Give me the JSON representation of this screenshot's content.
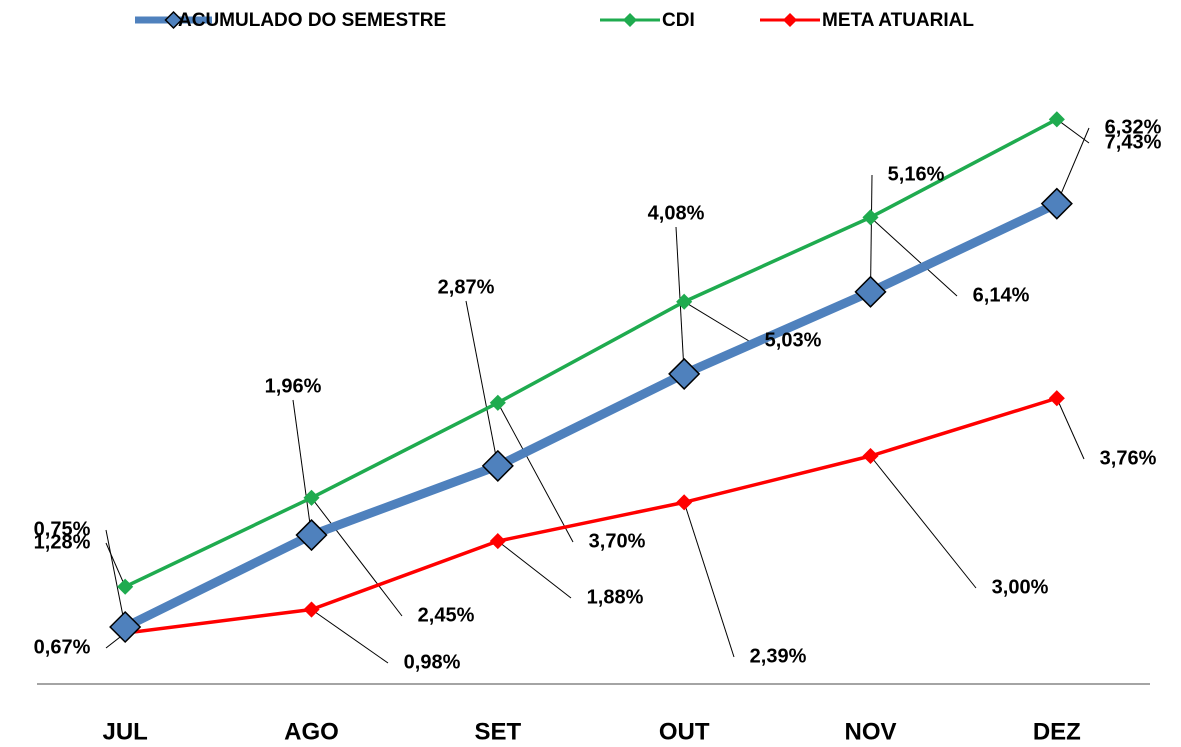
{
  "chart_data": {
    "type": "line",
    "categories": [
      "JUL",
      "AGO",
      "SET",
      "OUT",
      "NOV",
      "DEZ"
    ],
    "series": [
      {
        "name": "ACUMULADO DO SEMESTRE",
        "color": "#4f81bd",
        "values": [
          0.75,
          1.96,
          2.87,
          4.08,
          5.16,
          6.32
        ],
        "value_labels": [
          "0,75%",
          "1,96%",
          "2,87%",
          "4,08%",
          "5,16%",
          "6,32%"
        ]
      },
      {
        "name": "CDI",
        "color": "#1fab4f",
        "values": [
          1.28,
          2.45,
          3.7,
          5.03,
          6.14,
          7.43
        ],
        "value_labels": [
          "1,28%",
          "2,45%",
          "3,70%",
          "5,03%",
          "6,14%",
          "7,43%"
        ]
      },
      {
        "name": "META ATUARIAL",
        "color": "#ff0000",
        "values": [
          0.67,
          0.98,
          1.88,
          2.39,
          3.0,
          3.76
        ],
        "value_labels": [
          "0,67%",
          "0,98%",
          "1,88%",
          "2,39%",
          "3,00%",
          "3,76%"
        ]
      }
    ],
    "ylim": [
      0,
      8
    ],
    "legend": "top"
  }
}
